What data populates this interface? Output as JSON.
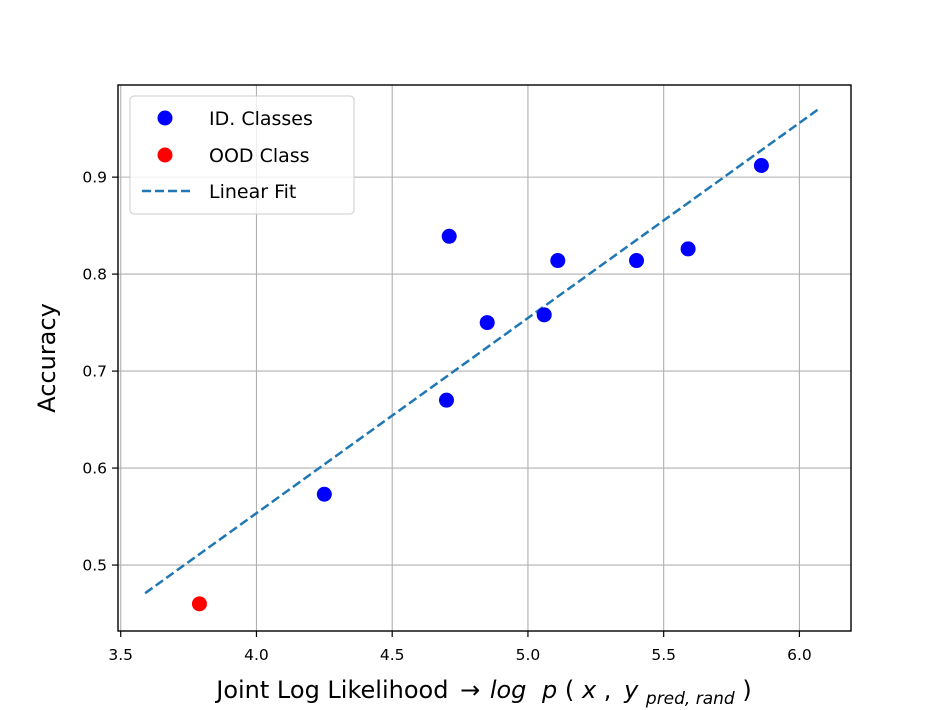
{
  "chart_data": {
    "type": "scatter",
    "xlabel": "Joint Log Likelihood",
    "xlabel_math": {
      "arrow": "→",
      "log": "log",
      "p": "p",
      "open": "(",
      "x": "x",
      "comma": ",",
      "y": "y",
      "subscript": "pred, rand",
      "close": ")"
    },
    "ylabel": "Accuracy",
    "xlim": [
      3.49,
      6.19
    ],
    "ylim": [
      0.432,
      0.995
    ],
    "xticks": [
      3.5,
      4.0,
      4.5,
      5.0,
      5.5,
      6.0
    ],
    "xtick_labels": [
      "3.5",
      "4.0",
      "4.5",
      "5.0",
      "5.5",
      "6.0"
    ],
    "yticks": [
      0.5,
      0.6,
      0.7,
      0.8,
      0.9
    ],
    "ytick_labels": [
      "0.5",
      "0.6",
      "0.7",
      "0.8",
      "0.9"
    ],
    "grid": true,
    "legend_position": "upper-left",
    "series": [
      {
        "name": "ID. Classes",
        "kind": "scatter",
        "color": "#0000ff",
        "points": [
          {
            "x": 4.25,
            "y": 0.573
          },
          {
            "x": 4.7,
            "y": 0.67
          },
          {
            "x": 4.71,
            "y": 0.839
          },
          {
            "x": 4.85,
            "y": 0.75
          },
          {
            "x": 5.06,
            "y": 0.758
          },
          {
            "x": 5.11,
            "y": 0.814
          },
          {
            "x": 5.4,
            "y": 0.814
          },
          {
            "x": 5.59,
            "y": 0.826
          },
          {
            "x": 5.86,
            "y": 0.912
          }
        ]
      },
      {
        "name": "OOD Class",
        "kind": "scatter",
        "color": "#ff0000",
        "points": [
          {
            "x": 3.79,
            "y": 0.46
          }
        ]
      },
      {
        "name": "Linear Fit",
        "kind": "line",
        "style": "dashed",
        "color": "#1f77b4",
        "points": [
          {
            "x": 3.59,
            "y": 0.471
          },
          {
            "x": 6.07,
            "y": 0.97
          }
        ]
      }
    ]
  }
}
